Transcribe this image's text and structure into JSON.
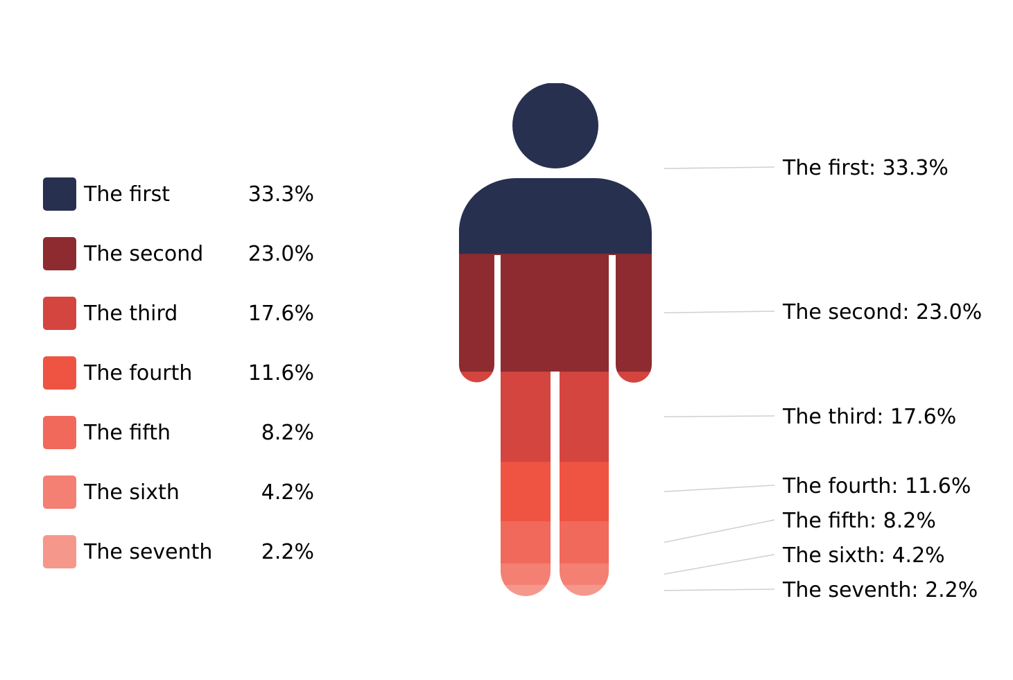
{
  "chart_data": {
    "type": "pie",
    "variant": "pictorial-person-stacked",
    "categories": [
      "The first",
      "The second",
      "The third",
      "The fourth",
      "The fifth",
      "The sixth",
      "The seventh"
    ],
    "values": [
      33.3,
      23.0,
      17.6,
      11.6,
      8.2,
      4.2,
      2.2
    ],
    "value_labels": [
      "33.3%",
      "23.0%",
      "17.6%",
      "11.6%",
      "8.2%",
      "4.2%",
      "2.2%"
    ],
    "callouts": [
      "The first: 33.3%",
      "The second: 23.0%",
      "The third: 17.6%",
      "The fourth: 11.6%",
      "The fifth: 8.2%",
      "The sixth: 4.2%",
      "The seventh: 2.2%"
    ],
    "colors": [
      "#283050",
      "#8e2b30",
      "#d4453f",
      "#ef5443",
      "#f1695b",
      "#f47f73",
      "#f6978c"
    ],
    "legend_position": "left",
    "grid": false
  }
}
